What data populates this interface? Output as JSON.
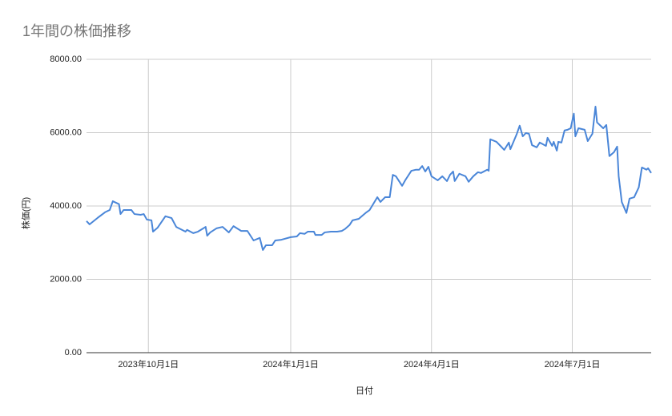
{
  "chart_data": {
    "type": "line",
    "title": "1年間の株価推移",
    "x_label": "日付",
    "y_label": "株価(円)",
    "x": [
      "2023-08-22",
      "2023-08-24",
      "2023-08-29",
      "2023-09-03",
      "2023-09-06",
      "2023-09-08",
      "2023-09-12",
      "2023-09-13",
      "2023-09-15",
      "2023-09-20",
      "2023-09-22",
      "2023-09-26",
      "2023-09-28",
      "2023-09-30",
      "2023-10-03",
      "2023-10-04",
      "2023-10-07",
      "2023-10-12",
      "2023-10-16",
      "2023-10-19",
      "2023-10-25",
      "2023-10-26",
      "2023-10-30",
      "2023-11-02",
      "2023-11-07",
      "2023-11-08",
      "2023-11-10",
      "2023-11-14",
      "2023-11-18",
      "2023-11-22",
      "2023-11-25",
      "2023-11-30",
      "2023-12-04",
      "2023-12-08",
      "2023-12-12",
      "2023-12-14",
      "2023-12-16",
      "2023-12-20",
      "2023-12-22",
      "2023-12-26",
      "2024-01-01",
      "2024-01-05",
      "2024-01-07",
      "2024-01-10",
      "2024-01-12",
      "2024-01-16",
      "2024-01-17",
      "2024-01-21",
      "2024-01-23",
      "2024-01-27",
      "2024-01-31",
      "2024-02-03",
      "2024-02-05",
      "2024-02-08",
      "2024-02-10",
      "2024-02-14",
      "2024-02-17",
      "2024-02-19",
      "2024-02-21",
      "2024-02-26",
      "2024-02-28",
      "2024-03-02",
      "2024-03-05",
      "2024-03-07",
      "2024-03-09",
      "2024-03-13",
      "2024-03-15",
      "2024-03-19",
      "2024-03-22",
      "2024-03-24",
      "2024-03-26",
      "2024-03-28",
      "2024-03-30",
      "2024-04-01",
      "2024-04-05",
      "2024-04-08",
      "2024-04-11",
      "2024-04-13",
      "2024-04-15",
      "2024-04-16",
      "2024-04-19",
      "2024-04-23",
      "2024-04-25",
      "2024-04-28",
      "2024-05-01",
      "2024-05-03",
      "2024-05-07",
      "2024-05-08",
      "2024-05-09",
      "2024-05-13",
      "2024-05-16",
      "2024-05-18",
      "2024-05-21",
      "2024-05-22",
      "2024-05-26",
      "2024-05-28",
      "2024-05-30",
      "2024-06-01",
      "2024-06-03",
      "2024-06-05",
      "2024-06-08",
      "2024-06-10",
      "2024-06-14",
      "2024-06-15",
      "2024-06-18",
      "2024-06-19",
      "2024-06-21",
      "2024-06-22",
      "2024-06-24",
      "2024-06-26",
      "2024-06-28",
      "2024-06-30",
      "2024-07-02",
      "2024-07-03",
      "2024-07-05",
      "2024-07-09",
      "2024-07-11",
      "2024-07-14",
      "2024-07-16",
      "2024-07-17",
      "2024-07-21",
      "2024-07-23",
      "2024-07-25",
      "2024-07-28",
      "2024-07-30",
      "2024-07-31",
      "2024-08-02",
      "2024-08-05",
      "2024-08-07",
      "2024-08-10",
      "2024-08-13",
      "2024-08-15",
      "2024-08-18",
      "2024-08-19",
      "2024-08-21"
    ],
    "values": [
      3590,
      3500,
      3670,
      3830,
      3890,
      4130,
      4050,
      3780,
      3890,
      3890,
      3780,
      3760,
      3780,
      3630,
      3610,
      3300,
      3410,
      3720,
      3670,
      3430,
      3300,
      3350,
      3260,
      3300,
      3430,
      3190,
      3280,
      3390,
      3430,
      3280,
      3450,
      3320,
      3320,
      3060,
      3130,
      2800,
      2930,
      2930,
      3060,
      3080,
      3150,
      3170,
      3260,
      3240,
      3300,
      3300,
      3210,
      3210,
      3280,
      3300,
      3300,
      3320,
      3370,
      3480,
      3610,
      3650,
      3760,
      3830,
      3890,
      4240,
      4110,
      4240,
      4240,
      4850,
      4810,
      4550,
      4700,
      4960,
      4990,
      4990,
      5090,
      4940,
      5070,
      4810,
      4700,
      4810,
      4680,
      4850,
      4940,
      4680,
      4880,
      4810,
      4660,
      4810,
      4920,
      4900,
      4990,
      4960,
      5820,
      5750,
      5620,
      5530,
      5730,
      5550,
      5950,
      6190,
      5900,
      5990,
      5970,
      5660,
      5600,
      5730,
      5640,
      5860,
      5640,
      5750,
      5510,
      5750,
      5730,
      6060,
      6080,
      6120,
      6520,
      5900,
      6120,
      6080,
      5770,
      5970,
      6710,
      6280,
      6120,
      6210,
      5360,
      5470,
      5620,
      4810,
      4110,
      3810,
      4200,
      4240,
      4510,
      5050,
      4990,
      5030,
      4900
    ],
    "color": "#4a86d8",
    "xlim": [
      "2023-08-22",
      "2024-08-21"
    ],
    "xticks": [
      {
        "value": "2023-10-01",
        "label": "2023年10月1日"
      },
      {
        "value": "2024-01-01",
        "label": "2024年1月1日"
      },
      {
        "value": "2024-04-01",
        "label": "2024年4月1日"
      },
      {
        "value": "2024-07-01",
        "label": "2024年7月1日"
      }
    ],
    "ylim": [
      0,
      8000
    ],
    "yticks": [
      {
        "value": 0,
        "label": "0.00"
      },
      {
        "value": 2000,
        "label": "2000.00"
      },
      {
        "value": 4000,
        "label": "4000.00"
      },
      {
        "value": 6000,
        "label": "6000.00"
      },
      {
        "value": 8000,
        "label": "8000.00"
      }
    ],
    "grid": true
  }
}
